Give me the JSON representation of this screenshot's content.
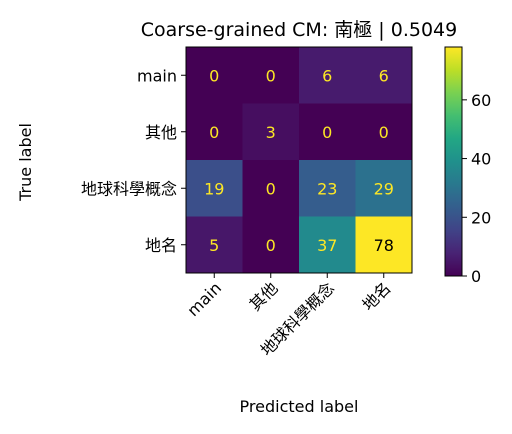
{
  "chart_data": {
    "type": "heatmap",
    "title": "Coarse-grained CM: 南極 | 0.5049",
    "xlabel": "Predicted label",
    "ylabel": "True label",
    "x_categories": [
      "main",
      "其他",
      "地球科學概念",
      "地名"
    ],
    "y_categories": [
      "main",
      "其他",
      "地球科學概念",
      "地名"
    ],
    "values": [
      [
        0,
        0,
        6,
        6
      ],
      [
        0,
        3,
        0,
        0
      ],
      [
        19,
        0,
        23,
        29
      ],
      [
        5,
        0,
        37,
        78
      ]
    ],
    "colormap": "viridis",
    "vmin": 0,
    "vmax": 78,
    "colorbar_ticks": [
      0,
      20,
      40,
      60
    ],
    "annotation_color_low": "#fde725",
    "annotation_color_high": "#000000"
  }
}
